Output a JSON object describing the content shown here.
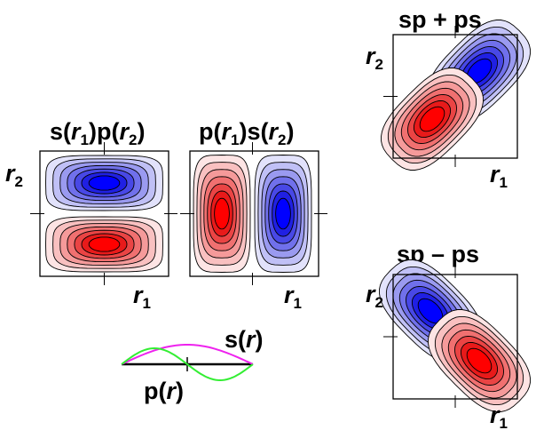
{
  "panels": [
    {
      "id": "s1p2",
      "title_parts": [
        {
          "text": "s(",
          "italic": false
        },
        {
          "text": "r",
          "italic": true
        },
        {
          "text": "1",
          "italic": false,
          "sub": true
        },
        {
          "text": ")p(",
          "italic": false
        },
        {
          "text": "r",
          "italic": true
        },
        {
          "text": "2",
          "italic": false,
          "sub": true
        },
        {
          "text": ")",
          "italic": false
        }
      ],
      "xlabel": {
        "var": "r",
        "sub": "1"
      },
      "ylabel": {
        "var": "r",
        "sub": "2"
      },
      "lobes": [
        {
          "color": "blue",
          "shape": "horizontal-upper"
        },
        {
          "color": "red",
          "shape": "horizontal-lower"
        }
      ]
    },
    {
      "id": "p1s2",
      "title_parts": [
        {
          "text": "p(",
          "italic": false
        },
        {
          "text": "r",
          "italic": true
        },
        {
          "text": "1",
          "italic": false,
          "sub": true
        },
        {
          "text": ")s(",
          "italic": false
        },
        {
          "text": "r",
          "italic": true
        },
        {
          "text": "2",
          "italic": false,
          "sub": true
        },
        {
          "text": ")",
          "italic": false
        }
      ],
      "xlabel": {
        "var": "r",
        "sub": "1"
      },
      "lobes": [
        {
          "color": "red",
          "shape": "vertical-left"
        },
        {
          "color": "blue",
          "shape": "vertical-right"
        }
      ]
    },
    {
      "id": "sp_plus_ps",
      "title": "sp + ps",
      "xlabel": {
        "var": "r",
        "sub": "1"
      },
      "ylabel": {
        "var": "r",
        "sub": "2"
      },
      "lobes": [
        {
          "color": "blue",
          "shape": "diagonal-upper-right"
        },
        {
          "color": "red",
          "shape": "diagonal-lower-left"
        }
      ]
    },
    {
      "id": "sp_minus_ps",
      "title": "sp – ps",
      "xlabel": {
        "var": "r",
        "sub": "1"
      },
      "ylabel": {
        "var": "r",
        "sub": "2"
      },
      "lobes": [
        {
          "color": "blue",
          "shape": "diagonal-upper-left"
        },
        {
          "color": "red",
          "shape": "diagonal-lower-right"
        }
      ]
    }
  ],
  "orbital_plot": {
    "s_label": {
      "name": "s",
      "var": "r"
    },
    "p_label": {
      "name": "p",
      "var": "r"
    },
    "s_color": "#ee22ee",
    "p_color": "#33ee33"
  },
  "colors": {
    "red_levels": [
      "#fde4e4",
      "#f9c0c0",
      "#f59a9a",
      "#f07070",
      "#ea4444",
      "#e81a1a",
      "#ff0000"
    ],
    "blue_levels": [
      "#e2e2fb",
      "#c0c0f6",
      "#9a9af0",
      "#7070eb",
      "#4848e6",
      "#2020e3",
      "#0000ff"
    ]
  }
}
